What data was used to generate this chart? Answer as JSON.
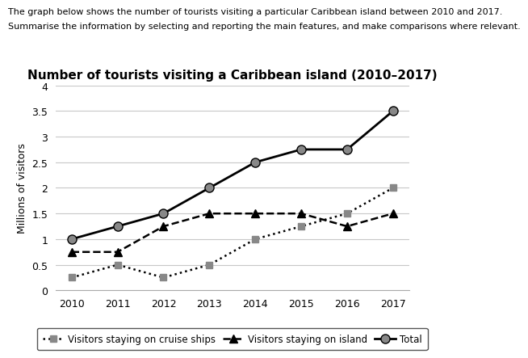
{
  "title": "Number of tourists visiting a Caribbean island (2010–2017)",
  "header_line1": "The graph below shows the number of tourists visiting a particular Caribbean island between 2010 and 2017.",
  "header_line2": "Summarise the information by selecting and reporting the main features, and make comparisons where relevant.",
  "ylabel": "Millions of visitors",
  "years": [
    2010,
    2011,
    2012,
    2013,
    2014,
    2015,
    2016,
    2017
  ],
  "cruise_ships": [
    0.25,
    0.5,
    0.25,
    0.5,
    1.0,
    1.25,
    1.5,
    2.0
  ],
  "on_island": [
    0.75,
    0.75,
    1.25,
    1.5,
    1.5,
    1.5,
    1.25,
    1.5
  ],
  "total": [
    1.0,
    1.25,
    1.5,
    2.0,
    2.5,
    2.75,
    2.75,
    3.5
  ],
  "ylim": [
    0,
    4
  ],
  "yticks": [
    0,
    0.5,
    1.0,
    1.5,
    2.0,
    2.5,
    3.0,
    3.5,
    4.0
  ],
  "background_color": "#ffffff",
  "grid_color": "#c8c8c8",
  "line_color": "#000000",
  "marker_gray": "#888888",
  "title_fontsize": 11,
  "header_fontsize": 8,
  "label_fontsize": 9,
  "tick_fontsize": 9,
  "legend_fontsize": 8.5
}
